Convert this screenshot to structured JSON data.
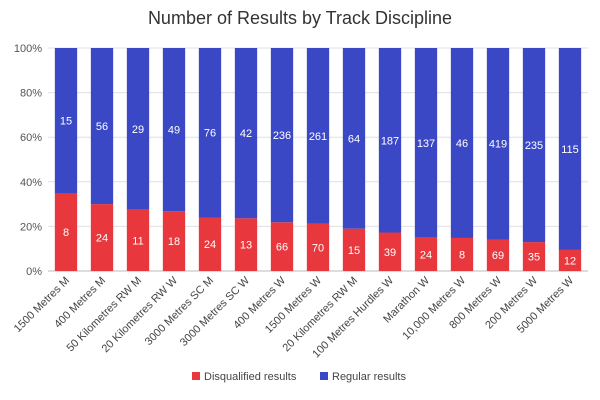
{
  "chart_data": {
    "type": "bar",
    "stacked": true,
    "normalized": true,
    "title": "Number of Results by Track Discipline",
    "xlabel": "",
    "ylabel": "",
    "ylim": [
      0,
      100
    ],
    "y_ticks": [
      "0%",
      "20%",
      "40%",
      "60%",
      "80%",
      "100%"
    ],
    "categories": [
      "1500 Metres M",
      "400 Metres M",
      "50 Kilometres RW M",
      "20 Kilometres RW W",
      "3000 Metres SC M",
      "3000 Metres SC W",
      "400 Metres W",
      "1500 Metres W",
      "20 Kilometres RW M",
      "100 Metres Hurdles W",
      "Marathon W",
      "10,000 Metres W",
      "800 Metres W",
      "200 Metres W",
      "5000 Metres W"
    ],
    "series": [
      {
        "name": "Disqualified results",
        "color": "#e8383d",
        "values": [
          8,
          24,
          11,
          18,
          24,
          13,
          66,
          70,
          15,
          39,
          24,
          8,
          69,
          35,
          12
        ]
      },
      {
        "name": "Regular results",
        "color": "#3b48c5",
        "values": [
          15,
          56,
          29,
          49,
          76,
          42,
          236,
          261,
          64,
          187,
          137,
          46,
          419,
          235,
          115
        ]
      }
    ],
    "grid": true,
    "legend_position": "bottom"
  }
}
